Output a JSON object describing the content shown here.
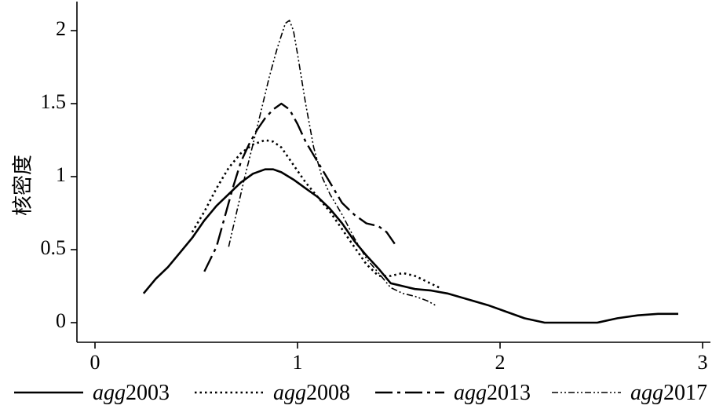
{
  "chart_data": {
    "type": "line",
    "title": "",
    "xlabel": "",
    "ylabel": "核密度",
    "xlim": [
      0,
      3
    ],
    "ylim": [
      0,
      2
    ],
    "x_ticks": [
      {
        "value": 0,
        "label": "0"
      },
      {
        "value": 1,
        "label": "1"
      },
      {
        "value": 2,
        "label": "2"
      },
      {
        "value": 3,
        "label": "3"
      }
    ],
    "y_ticks": [
      {
        "value": 0,
        "label": "0"
      },
      {
        "value": 0.5,
        "label": "0.5"
      },
      {
        "value": 1,
        "label": "1"
      },
      {
        "value": 1.5,
        "label": "1.5"
      },
      {
        "value": 2,
        "label": "2"
      }
    ],
    "grid": false,
    "legend": "bottom",
    "series": [
      {
        "name_prefix": "agg",
        "name_suffix": "2003",
        "style": "solid",
        "points": [
          [
            0.24,
            0.2
          ],
          [
            0.3,
            0.3
          ],
          [
            0.36,
            0.38
          ],
          [
            0.42,
            0.48
          ],
          [
            0.48,
            0.58
          ],
          [
            0.54,
            0.7
          ],
          [
            0.6,
            0.8
          ],
          [
            0.66,
            0.88
          ],
          [
            0.72,
            0.96
          ],
          [
            0.78,
            1.02
          ],
          [
            0.84,
            1.05
          ],
          [
            0.88,
            1.05
          ],
          [
            0.92,
            1.03
          ],
          [
            0.98,
            0.98
          ],
          [
            1.04,
            0.92
          ],
          [
            1.1,
            0.86
          ],
          [
            1.16,
            0.78
          ],
          [
            1.22,
            0.68
          ],
          [
            1.28,
            0.56
          ],
          [
            1.34,
            0.46
          ],
          [
            1.4,
            0.37
          ],
          [
            1.46,
            0.27
          ],
          [
            1.52,
            0.25
          ],
          [
            1.58,
            0.23
          ],
          [
            1.66,
            0.22
          ],
          [
            1.74,
            0.2
          ],
          [
            1.84,
            0.16
          ],
          [
            1.94,
            0.12
          ],
          [
            2.02,
            0.08
          ],
          [
            2.12,
            0.03
          ],
          [
            2.22,
            0.0
          ],
          [
            2.35,
            0.0
          ],
          [
            2.48,
            0.0
          ],
          [
            2.58,
            0.03
          ],
          [
            2.68,
            0.05
          ],
          [
            2.78,
            0.06
          ],
          [
            2.88,
            0.06
          ]
        ]
      },
      {
        "name_prefix": "agg",
        "name_suffix": "2008",
        "style": "dotted",
        "points": [
          [
            0.48,
            0.62
          ],
          [
            0.54,
            0.76
          ],
          [
            0.6,
            0.92
          ],
          [
            0.66,
            1.06
          ],
          [
            0.72,
            1.16
          ],
          [
            0.78,
            1.22
          ],
          [
            0.84,
            1.25
          ],
          [
            0.88,
            1.24
          ],
          [
            0.92,
            1.2
          ],
          [
            0.98,
            1.08
          ],
          [
            1.04,
            0.96
          ],
          [
            1.1,
            0.86
          ],
          [
            1.16,
            0.76
          ],
          [
            1.22,
            0.64
          ],
          [
            1.28,
            0.52
          ],
          [
            1.34,
            0.4
          ],
          [
            1.4,
            0.32
          ],
          [
            1.46,
            0.32
          ],
          [
            1.52,
            0.34
          ],
          [
            1.58,
            0.32
          ],
          [
            1.64,
            0.28
          ],
          [
            1.7,
            0.24
          ]
        ]
      },
      {
        "name_prefix": "agg",
        "name_suffix": "2013",
        "style": "longdash",
        "points": [
          [
            0.54,
            0.35
          ],
          [
            0.6,
            0.52
          ],
          [
            0.64,
            0.72
          ],
          [
            0.68,
            0.92
          ],
          [
            0.72,
            1.1
          ],
          [
            0.76,
            1.22
          ],
          [
            0.8,
            1.32
          ],
          [
            0.84,
            1.4
          ],
          [
            0.88,
            1.46
          ],
          [
            0.92,
            1.5
          ],
          [
            0.96,
            1.46
          ],
          [
            1.0,
            1.36
          ],
          [
            1.04,
            1.24
          ],
          [
            1.1,
            1.1
          ],
          [
            1.16,
            0.96
          ],
          [
            1.22,
            0.82
          ],
          [
            1.28,
            0.74
          ],
          [
            1.34,
            0.68
          ],
          [
            1.4,
            0.66
          ],
          [
            1.44,
            0.62
          ],
          [
            1.48,
            0.54
          ]
        ]
      },
      {
        "name_prefix": "agg",
        "name_suffix": "2017",
        "style": "dashdotdot",
        "points": [
          [
            0.66,
            0.52
          ],
          [
            0.7,
            0.76
          ],
          [
            0.74,
            1.0
          ],
          [
            0.78,
            1.22
          ],
          [
            0.82,
            1.45
          ],
          [
            0.86,
            1.68
          ],
          [
            0.9,
            1.88
          ],
          [
            0.94,
            2.05
          ],
          [
            0.96,
            2.07
          ],
          [
            0.98,
            2.0
          ],
          [
            1.0,
            1.84
          ],
          [
            1.04,
            1.5
          ],
          [
            1.08,
            1.2
          ],
          [
            1.12,
            1.0
          ],
          [
            1.16,
            0.88
          ],
          [
            1.22,
            0.74
          ],
          [
            1.28,
            0.58
          ],
          [
            1.34,
            0.44
          ],
          [
            1.4,
            0.34
          ],
          [
            1.46,
            0.24
          ],
          [
            1.52,
            0.2
          ],
          [
            1.58,
            0.18
          ],
          [
            1.64,
            0.15
          ],
          [
            1.68,
            0.12
          ]
        ]
      }
    ]
  }
}
